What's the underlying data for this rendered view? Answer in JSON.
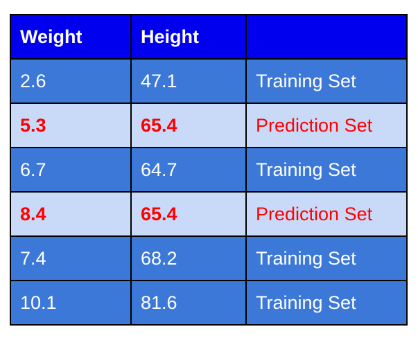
{
  "table": {
    "headers": [
      "Weight",
      "Height",
      ""
    ],
    "rows": [
      {
        "weight": "2.6",
        "height": "47.1",
        "set": "Training Set",
        "kind": "training"
      },
      {
        "weight": "5.3",
        "height": "65.4",
        "set": "Prediction Set",
        "kind": "prediction"
      },
      {
        "weight": "6.7",
        "height": "64.7",
        "set": "Training Set",
        "kind": "training"
      },
      {
        "weight": "8.4",
        "height": "65.4",
        "set": "Prediction Set",
        "kind": "prediction"
      },
      {
        "weight": "7.4",
        "height": "68.2",
        "set": "Training Set",
        "kind": "training"
      },
      {
        "weight": "10.1",
        "height": "81.6",
        "set": "Training Set",
        "kind": "training"
      }
    ]
  },
  "colors": {
    "header_bg": "#0000ee",
    "training_bg": "#3c78d8",
    "prediction_bg": "#c9daf8",
    "prediction_text": "#ff0000",
    "training_text": "#ffffff"
  }
}
